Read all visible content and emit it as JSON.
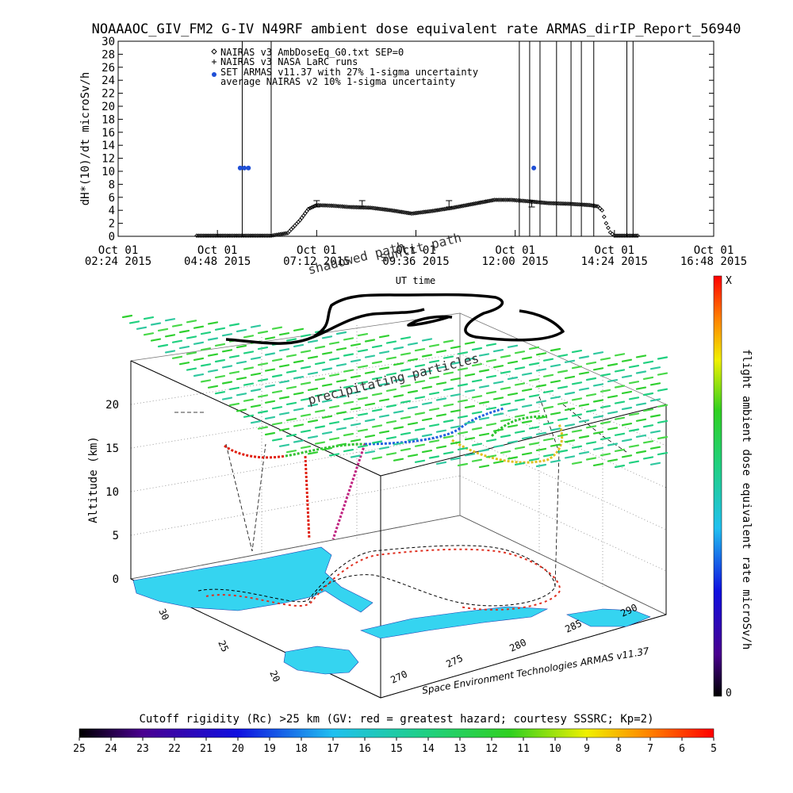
{
  "chart_data": [
    {
      "type": "scatter",
      "title": "NOAAAOC_GIV_FM2 G-IV   N49RF  ambient dose equivalent rate ARMAS_dirIP_Report_56940",
      "ylabel": "dH*(10)/dt microSv/h",
      "xlabel": "UT time",
      "ylim": [
        0,
        30
      ],
      "y_ticks": [
        0,
        2,
        4,
        6,
        8,
        10,
        12,
        14,
        16,
        18,
        20,
        22,
        24,
        26,
        28,
        30
      ],
      "x_ticks": [
        {
          "line1": "Oct 01",
          "line2": "02:24 2015",
          "hours": 2.4
        },
        {
          "line1": "Oct 01",
          "line2": "04:48 2015",
          "hours": 4.8
        },
        {
          "line1": "Oct 01",
          "line2": "07:12 2015",
          "hours": 7.2
        },
        {
          "line1": "Oct 01",
          "line2": "09:36 2015",
          "hours": 9.6
        },
        {
          "line1": "Oct 01",
          "line2": "12:00 2015",
          "hours": 12.0
        },
        {
          "line1": "Oct 01",
          "line2": "14:24 2015",
          "hours": 14.4
        },
        {
          "line1": "Oct 01",
          "line2": "16:48 2015",
          "hours": 16.8
        }
      ],
      "xlim_hours": [
        2.4,
        16.8
      ],
      "legend": {
        "placement": "top-left",
        "entries": [
          {
            "marker": "diamond",
            "label": "NAIRAS v3 AmbDoseEq_G0.txt SEP=0"
          },
          {
            "marker": "plus",
            "label": "NAIRAS v3 NASA LaRC runs"
          },
          {
            "marker": "blue-dot",
            "label": "SET ARMAS v11.37 with 27% 1-sigma uncertainty"
          },
          {
            "marker": "none",
            "label": "average NAIRAS v2 10% 1-sigma uncertainty"
          }
        ]
      },
      "series": [
        {
          "marker": "diamond",
          "x": [
            4.3,
            5.0,
            5.6,
            6.1,
            6.5,
            6.8,
            7.0,
            7.2,
            7.6,
            8.0,
            8.5,
            9.0,
            9.5,
            10.0,
            10.5,
            11.0,
            11.5,
            11.9,
            12.3,
            12.8,
            13.3,
            13.8,
            14.0,
            14.1,
            14.2,
            14.3,
            14.4,
            14.6,
            14.8,
            15.0
          ],
          "y": [
            0.1,
            0.1,
            0.1,
            0.1,
            0.5,
            2.5,
            4.2,
            4.8,
            4.7,
            4.5,
            4.4,
            4.0,
            3.5,
            3.9,
            4.4,
            5.0,
            5.6,
            5.6,
            5.4,
            5.1,
            5.0,
            4.8,
            4.6,
            4.0,
            2.0,
            0.6,
            0.1,
            0.1,
            0.1,
            0.1
          ]
        },
        {
          "marker": "blue-dot",
          "x": [
            5.35,
            5.45,
            5.55,
            12.45
          ],
          "y": [
            10.5,
            10.5,
            10.5,
            10.5
          ]
        }
      ],
      "spikes_hours": [
        5.4,
        6.1,
        12.1,
        12.35,
        12.6,
        13.0,
        13.35,
        13.6,
        13.9,
        14.7,
        14.85
      ]
    },
    {
      "type": "scatter",
      "title": "",
      "zlabel": "Altitude (km)",
      "z_ticks": [
        0,
        5,
        10,
        15,
        20
      ],
      "lat_ticks": [
        20,
        25,
        30
      ],
      "lon_ticks": [
        270,
        275,
        280,
        285,
        290
      ],
      "annotations": [
        "shadowed path",
        "sunlit path",
        "precipitating particles"
      ],
      "colorbar": {
        "title": "flight ambient dose equivalent rate microSv/h",
        "top_label": "X",
        "bottom_label": "0"
      },
      "credit": "Space Environment Technologies ARMAS v11.37"
    },
    {
      "type": "heatmap",
      "title": "Cutoff rigidity (Rc) >25 km (GV: red = greatest hazard; courtesy SSSRC; Kp=2)",
      "ticks": [
        25,
        24,
        23,
        22,
        21,
        20,
        19,
        18,
        17,
        16,
        15,
        14,
        13,
        12,
        11,
        10,
        9,
        8,
        7,
        6,
        5
      ]
    }
  ]
}
